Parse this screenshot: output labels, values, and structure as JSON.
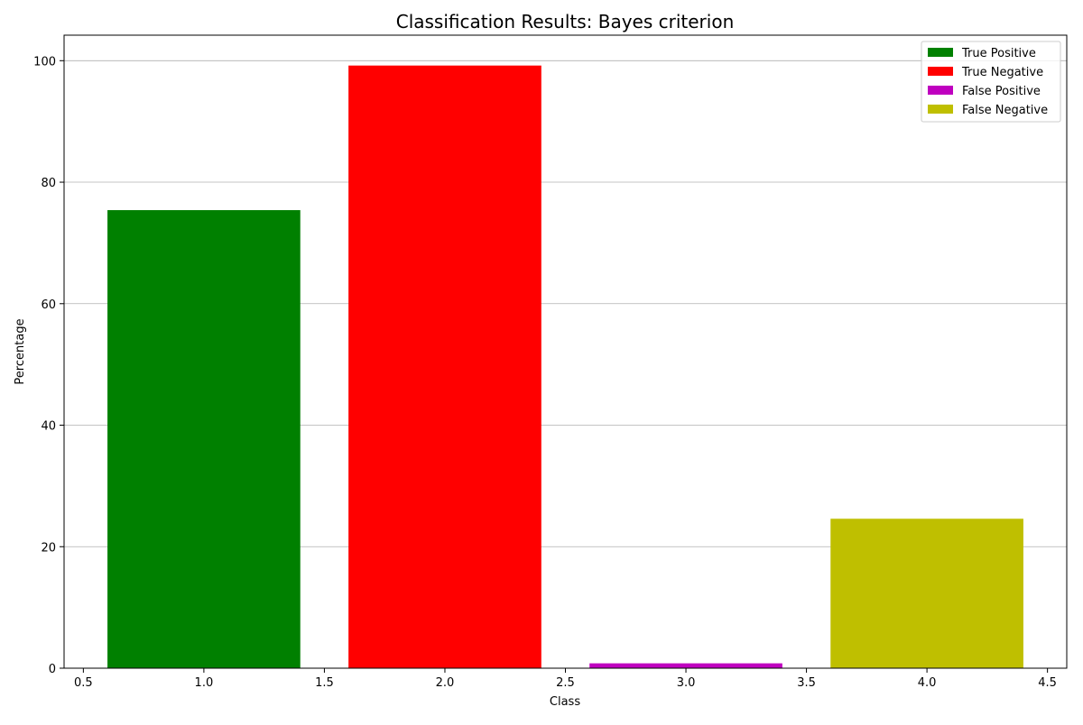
{
  "chart_data": {
    "type": "bar",
    "title": "Classification Results: Bayes criterion",
    "xlabel": "Class",
    "ylabel": "Percentage",
    "x": [
      1,
      2,
      3,
      4
    ],
    "bar_width": 0.8,
    "series": [
      {
        "name": "True Positive",
        "x": 1,
        "value": 75.4,
        "color": "#008000"
      },
      {
        "name": "True Negative",
        "x": 2,
        "value": 99.2,
        "color": "#ff0000"
      },
      {
        "name": "False Positive",
        "x": 3,
        "value": 0.8,
        "color": "#bf00bf"
      },
      {
        "name": "False Negative",
        "x": 4,
        "value": 24.6,
        "color": "#bfbf00"
      }
    ],
    "xlim": [
      0.42,
      4.58
    ],
    "ylim": [
      0,
      104.2
    ],
    "xticks": [
      0.5,
      1.0,
      1.5,
      2.0,
      2.5,
      3.0,
      3.5,
      4.0,
      4.5
    ],
    "xtick_labels": [
      "0.5",
      "1.0",
      "1.5",
      "2.0",
      "2.5",
      "3.0",
      "3.5",
      "4.0",
      "4.5"
    ],
    "yticks": [
      0,
      20,
      40,
      60,
      80,
      100
    ],
    "ytick_labels": [
      "0",
      "20",
      "40",
      "60",
      "80",
      "100"
    ],
    "grid": "horizontal",
    "legend_position": "top-right"
  }
}
